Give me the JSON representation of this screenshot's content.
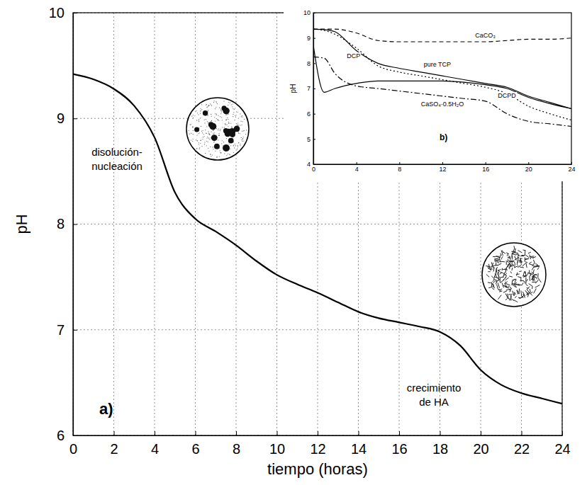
{
  "chart_data": [
    {
      "type": "line",
      "x_label": "tiempo (horas)",
      "y_label": "pH",
      "panel_label": "a)",
      "annotations": [
        "disolución-nucleación",
        "crecimiento de HA"
      ],
      "x": [
        0,
        1,
        2,
        3,
        4,
        5,
        6,
        7,
        8,
        9,
        10,
        11,
        12,
        13,
        14,
        15,
        16,
        17,
        18,
        19,
        20,
        21,
        22,
        23,
        24
      ],
      "series": [
        {
          "color": "#000000",
          "line_style": "solid",
          "values": [
            9.42,
            9.37,
            9.28,
            9.12,
            8.82,
            8.3,
            8.05,
            7.93,
            7.8,
            7.65,
            7.52,
            7.43,
            7.35,
            7.26,
            7.17,
            7.11,
            7.07,
            7.03,
            6.98,
            6.85,
            6.62,
            6.48,
            6.4,
            6.35,
            6.3
          ]
        }
      ],
      "xlim": [
        0,
        24
      ],
      "xticks": [
        0,
        2,
        4,
        6,
        8,
        10,
        12,
        14,
        16,
        18,
        20,
        22,
        24
      ],
      "ylim": [
        6,
        10
      ],
      "yticks": [
        6,
        7,
        8,
        9,
        10
      ],
      "grid": true
    },
    {
      "type": "line",
      "y_label": "pH",
      "panel_label": "b)",
      "x": [
        0,
        1,
        2,
        4,
        6,
        8,
        10,
        12,
        14,
        16,
        18,
        20,
        22,
        24
      ],
      "series": [
        {
          "name": "CaCO₃",
          "color": "#000000",
          "line_style": "dashed",
          "values": [
            9.35,
            9.35,
            9.35,
            9.2,
            8.9,
            8.85,
            8.85,
            8.85,
            8.85,
            8.85,
            8.9,
            8.95,
            8.95,
            9.0
          ]
        },
        {
          "name": "pure TCP",
          "color": "#000000",
          "line_style": "solid",
          "values": [
            9.35,
            9.33,
            9.25,
            8.5,
            8.0,
            7.8,
            7.65,
            7.5,
            7.35,
            7.2,
            7.05,
            6.7,
            6.45,
            6.2
          ]
        },
        {
          "name": "DCP",
          "color": "#000000",
          "line_style": "dotted",
          "values": [
            9.35,
            9.3,
            9.15,
            8.6,
            7.9,
            7.65,
            7.5,
            7.35,
            7.2,
            7.05,
            6.8,
            6.3,
            6.0,
            5.75
          ]
        },
        {
          "name": "DCPD",
          "color": "#000000",
          "line_style": "solid",
          "values": [
            8.7,
            6.85,
            7.0,
            7.2,
            7.3,
            7.3,
            7.3,
            7.3,
            7.25,
            7.15,
            7.0,
            6.65,
            6.4,
            6.2
          ]
        },
        {
          "name": "CaSO₄·0.5H₂O",
          "color": "#000000",
          "line_style": "dashdot",
          "values": [
            8.25,
            8.2,
            7.6,
            7.1,
            7.0,
            6.9,
            6.8,
            6.7,
            6.6,
            6.5,
            6.0,
            5.7,
            5.6,
            5.5
          ]
        }
      ],
      "xlim": [
        0,
        24
      ],
      "xticks": [
        0,
        4,
        8,
        12,
        16,
        20,
        24
      ],
      "ylim": [
        4,
        10
      ],
      "yticks": [
        4,
        5,
        6,
        7,
        8,
        9,
        10
      ],
      "grid": false
    }
  ]
}
